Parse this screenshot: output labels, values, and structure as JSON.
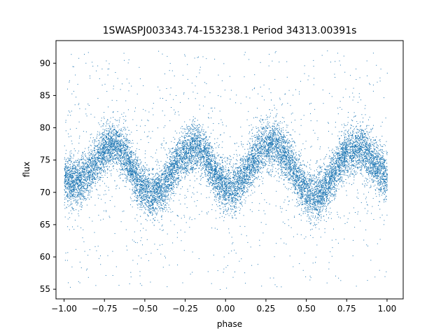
{
  "chart_data": {
    "type": "scatter",
    "title": "1SWASPJ003343.74-153238.1 Period 34313.00391s",
    "xlabel": "phase",
    "ylabel": "flux",
    "xlim": [
      -1.05,
      1.1
    ],
    "ylim": [
      53.5,
      93.5
    ],
    "xticks": [
      -1.0,
      -0.75,
      -0.5,
      -0.25,
      0.0,
      0.25,
      0.5,
      0.75,
      1.0
    ],
    "xtick_labels": [
      "−1.00",
      "−0.75",
      "−0.50",
      "−0.25",
      "0.00",
      "0.25",
      "0.50",
      "0.75",
      "1.00"
    ],
    "yticks": [
      55,
      60,
      65,
      70,
      75,
      80,
      85,
      90
    ],
    "ytick_labels": [
      "55",
      "60",
      "65",
      "70",
      "75",
      "80",
      "85",
      "90"
    ],
    "grid": false,
    "marker_color": "#1f77b4",
    "series": [
      {
        "x": [
          -1.0,
          -0.95,
          -0.9,
          -0.85,
          -0.8,
          -0.75,
          -0.7,
          -0.65,
          -0.6,
          -0.55,
          -0.5,
          -0.45,
          -0.4,
          -0.35,
          -0.3,
          -0.25,
          -0.2,
          -0.15,
          -0.1,
          -0.05,
          0.0,
          0.05,
          0.1,
          0.15,
          0.2,
          0.25,
          0.3,
          0.35,
          0.4,
          0.45,
          0.5,
          0.55,
          0.6,
          0.65,
          0.7,
          0.75,
          0.8,
          0.85,
          0.9,
          0.95,
          1.0
        ],
        "y": [
          72.5,
          71.5,
          71.8,
          73.0,
          75.0,
          76.8,
          77.5,
          76.8,
          74.8,
          72.0,
          70.2,
          69.5,
          70.5,
          72.5,
          74.5,
          76.0,
          77.0,
          76.5,
          74.5,
          72.0,
          71.0,
          70.5,
          72.0,
          74.0,
          76.0,
          77.5,
          77.8,
          76.5,
          74.5,
          72.0,
          70.0,
          69.3,
          70.0,
          72.0,
          74.5,
          76.3,
          77.0,
          76.5,
          75.0,
          73.5,
          72.5
        ],
        "band_halfwidth": 3.2,
        "outlier_range": [
          55,
          92
        ]
      }
    ]
  }
}
